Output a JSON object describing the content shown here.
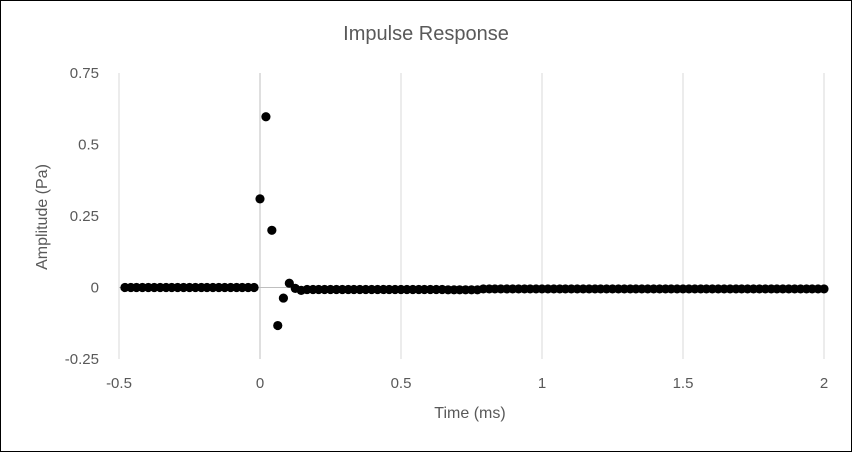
{
  "chart_data": {
    "type": "scatter",
    "title": "Impulse Response",
    "xlabel": "Time (ms)",
    "ylabel": "Amplitude (Pa)",
    "xlim": [
      -0.5,
      2
    ],
    "ylim": [
      -0.25,
      0.75
    ],
    "x_ticks": [
      -0.5,
      0,
      0.5,
      1,
      1.5,
      2
    ],
    "y_ticks": [
      -0.25,
      0,
      0.25,
      0.5,
      0.75
    ],
    "x_tick_labels": [
      "-0.5",
      "0",
      "0.5",
      "1",
      "1.5",
      "2"
    ],
    "y_tick_labels": [
      "-0.25",
      "0",
      "0.25",
      "0.5",
      "0.75"
    ],
    "grid": "vertical",
    "legend": "none",
    "marker_color": "#000000",
    "series": [
      {
        "points": [
          [
            -0.479,
            0.0
          ],
          [
            -0.458,
            0.0
          ],
          [
            -0.438,
            0.0
          ],
          [
            -0.417,
            0.0
          ],
          [
            -0.396,
            0.0
          ],
          [
            -0.375,
            0.0
          ],
          [
            -0.354,
            0.0
          ],
          [
            -0.333,
            0.0
          ],
          [
            -0.313,
            0.0
          ],
          [
            -0.292,
            0.0
          ],
          [
            -0.271,
            0.0
          ],
          [
            -0.25,
            0.0
          ],
          [
            -0.229,
            0.0
          ],
          [
            -0.208,
            0.0
          ],
          [
            -0.188,
            0.0
          ],
          [
            -0.167,
            0.0
          ],
          [
            -0.146,
            0.0
          ],
          [
            -0.125,
            0.0
          ],
          [
            -0.104,
            0.0
          ],
          [
            -0.083,
            0.0
          ],
          [
            -0.063,
            0.0
          ],
          [
            -0.042,
            0.0
          ],
          [
            -0.021,
            0.0
          ],
          [
            0.0,
            0.31
          ],
          [
            0.021,
            0.597
          ],
          [
            0.042,
            0.2
          ],
          [
            0.063,
            -0.133
          ],
          [
            0.083,
            -0.037
          ],
          [
            0.104,
            0.015
          ],
          [
            0.125,
            -0.003
          ],
          [
            0.146,
            -0.01
          ],
          [
            0.167,
            -0.007
          ],
          [
            0.188,
            -0.007
          ],
          [
            0.208,
            -0.007
          ],
          [
            0.229,
            -0.007
          ],
          [
            0.25,
            -0.007
          ],
          [
            0.271,
            -0.007
          ],
          [
            0.292,
            -0.007
          ],
          [
            0.313,
            -0.007
          ],
          [
            0.333,
            -0.007
          ],
          [
            0.354,
            -0.007
          ],
          [
            0.375,
            -0.007
          ],
          [
            0.396,
            -0.007
          ],
          [
            0.417,
            -0.007
          ],
          [
            0.438,
            -0.007
          ],
          [
            0.458,
            -0.007
          ],
          [
            0.479,
            -0.007
          ],
          [
            0.5,
            -0.007
          ],
          [
            0.521,
            -0.007
          ],
          [
            0.542,
            -0.007
          ],
          [
            0.563,
            -0.007
          ],
          [
            0.583,
            -0.007
          ],
          [
            0.604,
            -0.007
          ],
          [
            0.625,
            -0.007
          ],
          [
            0.646,
            -0.007
          ],
          [
            0.667,
            -0.008
          ],
          [
            0.688,
            -0.008
          ],
          [
            0.708,
            -0.008
          ],
          [
            0.729,
            -0.008
          ],
          [
            0.75,
            -0.008
          ],
          [
            0.771,
            -0.008
          ],
          [
            0.792,
            -0.005
          ],
          [
            0.813,
            -0.005
          ],
          [
            0.833,
            -0.005
          ],
          [
            0.854,
            -0.005
          ],
          [
            0.875,
            -0.005
          ],
          [
            0.896,
            -0.005
          ],
          [
            0.917,
            -0.005
          ],
          [
            0.938,
            -0.005
          ],
          [
            0.958,
            -0.005
          ],
          [
            0.979,
            -0.005
          ],
          [
            1.0,
            -0.005
          ],
          [
            1.021,
            -0.005
          ],
          [
            1.042,
            -0.005
          ],
          [
            1.063,
            -0.005
          ],
          [
            1.083,
            -0.005
          ],
          [
            1.104,
            -0.005
          ],
          [
            1.125,
            -0.005
          ],
          [
            1.146,
            -0.005
          ],
          [
            1.167,
            -0.005
          ],
          [
            1.188,
            -0.005
          ],
          [
            1.208,
            -0.005
          ],
          [
            1.229,
            -0.005
          ],
          [
            1.25,
            -0.005
          ],
          [
            1.271,
            -0.005
          ],
          [
            1.292,
            -0.005
          ],
          [
            1.313,
            -0.005
          ],
          [
            1.333,
            -0.005
          ],
          [
            1.354,
            -0.005
          ],
          [
            1.375,
            -0.005
          ],
          [
            1.396,
            -0.005
          ],
          [
            1.417,
            -0.005
          ],
          [
            1.438,
            -0.005
          ],
          [
            1.458,
            -0.005
          ],
          [
            1.479,
            -0.005
          ],
          [
            1.5,
            -0.005
          ],
          [
            1.521,
            -0.005
          ],
          [
            1.542,
            -0.005
          ],
          [
            1.563,
            -0.005
          ],
          [
            1.583,
            -0.005
          ],
          [
            1.604,
            -0.005
          ],
          [
            1.625,
            -0.005
          ],
          [
            1.646,
            -0.005
          ],
          [
            1.667,
            -0.005
          ],
          [
            1.688,
            -0.005
          ],
          [
            1.708,
            -0.005
          ],
          [
            1.729,
            -0.005
          ],
          [
            1.75,
            -0.005
          ],
          [
            1.771,
            -0.005
          ],
          [
            1.792,
            -0.005
          ],
          [
            1.813,
            -0.005
          ],
          [
            1.833,
            -0.005
          ],
          [
            1.854,
            -0.005
          ],
          [
            1.875,
            -0.005
          ],
          [
            1.896,
            -0.005
          ],
          [
            1.917,
            -0.005
          ],
          [
            1.938,
            -0.005
          ],
          [
            1.958,
            -0.005
          ],
          [
            1.979,
            -0.005
          ],
          [
            2.0,
            -0.005
          ]
        ]
      }
    ]
  }
}
